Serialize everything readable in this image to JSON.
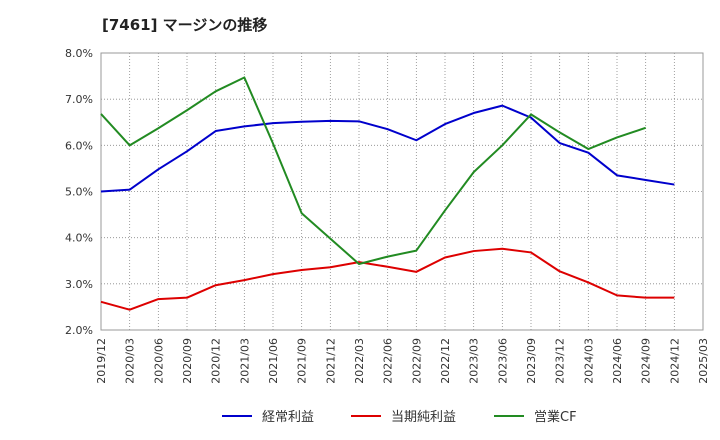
{
  "chart_data": {
    "type": "line",
    "title": "[7461]  マージンの推移",
    "xlabel": "",
    "ylabel": "",
    "x": [
      "2019/12",
      "2020/03",
      "2020/06",
      "2020/09",
      "2020/12",
      "2021/03",
      "2021/06",
      "2021/09",
      "2021/12",
      "2022/03",
      "2022/06",
      "2022/09",
      "2022/12",
      "2023/03",
      "2023/06",
      "2023/09",
      "2023/12",
      "2024/03",
      "2024/06",
      "2024/09",
      "2024/12",
      "2025/03"
    ],
    "ylim": [
      2.0,
      8.0
    ],
    "yticks": [
      "2.0%",
      "3.0%",
      "4.0%",
      "5.0%",
      "6.0%",
      "7.0%",
      "8.0%"
    ],
    "grid": true,
    "legend_position": "bottom",
    "series": [
      {
        "name": "経常利益",
        "color": "#0000cc",
        "values": [
          5.0,
          5.04,
          5.48,
          5.87,
          6.31,
          6.41,
          6.48,
          6.51,
          6.53,
          6.52,
          6.35,
          6.11,
          6.46,
          6.7,
          6.86,
          6.6,
          6.05,
          5.84,
          5.35,
          5.25,
          5.15,
          null
        ]
      },
      {
        "name": "当期純利益",
        "color": "#dd0000",
        "values": [
          2.61,
          2.44,
          2.67,
          2.7,
          2.97,
          3.08,
          3.21,
          3.3,
          3.36,
          3.47,
          3.37,
          3.26,
          3.57,
          3.71,
          3.76,
          3.68,
          3.27,
          3.03,
          2.75,
          2.7,
          2.7,
          null
        ]
      },
      {
        "name": "営業CF",
        "color": "#228b22",
        "values": [
          6.68,
          6.0,
          6.37,
          6.76,
          7.17,
          7.47,
          6.04,
          4.53,
          3.98,
          3.43,
          3.59,
          3.72,
          4.59,
          5.42,
          6.0,
          6.67,
          6.28,
          5.92,
          6.17,
          6.38,
          null,
          null
        ]
      }
    ]
  }
}
